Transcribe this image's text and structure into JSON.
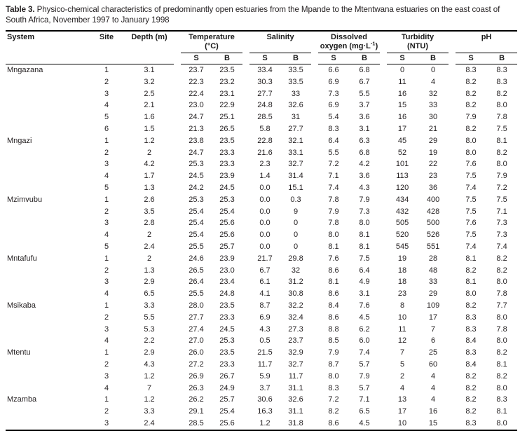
{
  "title": {
    "label": "Table 3.",
    "line1_rest": " Physico-chemical characteristics of predominantly open estuaries from the Mpande to the Mtentwana estuaries on the east coast of",
    "line2": "South Africa, November 1997 to January 1998"
  },
  "table": {
    "columns": {
      "system": "System",
      "site": "Site",
      "depth": "Depth (m)",
      "groups": [
        {
          "line1": "Temperature",
          "line2": "(°C)",
          "sub": [
            "S",
            "B"
          ]
        },
        {
          "line1": "Salinity",
          "line2": "",
          "sub": [
            "S",
            "B"
          ]
        },
        {
          "line1": "Dissolved",
          "line2_pre": "oxygen (mg·L",
          "line2_sup": "-1",
          "line2_post": ")",
          "sub": [
            "S",
            "B"
          ]
        },
        {
          "line1": "Turbidity",
          "line2": "(NTU)",
          "sub": [
            "S",
            "B"
          ]
        },
        {
          "line1": "pH",
          "line2": "",
          "sub": [
            "S",
            "B"
          ]
        }
      ]
    },
    "rows": [
      {
        "system": "Mngazana",
        "values": [
          "1",
          "3.1",
          "23.7",
          "23.5",
          "33.4",
          "33.5",
          "6.6",
          "6.8",
          "0",
          "0",
          "8.3",
          "8.3"
        ]
      },
      {
        "system": "",
        "values": [
          "2",
          "3.2",
          "22.3",
          "23.2",
          "30.3",
          "33.5",
          "6.9",
          "6.7",
          "11",
          "4",
          "8.2",
          "8.3"
        ]
      },
      {
        "system": "",
        "values": [
          "3",
          "2.5",
          "22.4",
          "23.1",
          "27.7",
          "33",
          "7.3",
          "5.5",
          "16",
          "32",
          "8.2",
          "8.2"
        ]
      },
      {
        "system": "",
        "values": [
          "4",
          "2.1",
          "23.0",
          "22.9",
          "24.8",
          "32.6",
          "6.9",
          "3.7",
          "15",
          "33",
          "8.2",
          "8.0"
        ]
      },
      {
        "system": "",
        "values": [
          "5",
          "1.6",
          "24.7",
          "25.1",
          "28.5",
          "31",
          "5.4",
          "3.6",
          "16",
          "30",
          "7.9",
          "7.8"
        ]
      },
      {
        "system": "",
        "values": [
          "6",
          "1.5",
          "21.3",
          "26.5",
          "5.8",
          "27.7",
          "8.3",
          "3.1",
          "17",
          "21",
          "8.2",
          "7.5"
        ]
      },
      {
        "system": "Mngazi",
        "values": [
          "1",
          "1.2",
          "23.8",
          "23.5",
          "22.8",
          "32.1",
          "6.4",
          "6.3",
          "45",
          "29",
          "8.0",
          "8.1"
        ]
      },
      {
        "system": "",
        "values": [
          "2",
          "2",
          "24.7",
          "23.3",
          "21.6",
          "33.1",
          "5.5",
          "6.8",
          "52",
          "19",
          "8.0",
          "8.2"
        ]
      },
      {
        "system": "",
        "values": [
          "3",
          "4.2",
          "25.3",
          "23.3",
          "2.3",
          "32.7",
          "7.2",
          "4.2",
          "101",
          "22",
          "7.6",
          "8.0"
        ]
      },
      {
        "system": "",
        "values": [
          "4",
          "1.7",
          "24.5",
          "23.9",
          "1.4",
          "31.4",
          "7.1",
          "3.6",
          "113",
          "23",
          "7.5",
          "7.9"
        ]
      },
      {
        "system": "",
        "values": [
          "5",
          "1.3",
          "24.2",
          "24.5",
          "0.0",
          "15.1",
          "7.4",
          "4.3",
          "120",
          "36",
          "7.4",
          "7.2"
        ]
      },
      {
        "system": "Mzimvubu",
        "values": [
          "1",
          "2.6",
          "25.3",
          "25.3",
          "0.0",
          "0.3",
          "7.8",
          "7.9",
          "434",
          "400",
          "7.5",
          "7.5"
        ]
      },
      {
        "system": "",
        "values": [
          "2",
          "3.5",
          "25.4",
          "25.4",
          "0.0",
          "9",
          "7.9",
          "7.3",
          "432",
          "428",
          "7.5",
          "7.1"
        ]
      },
      {
        "system": "",
        "values": [
          "3",
          "2.8",
          "25.4",
          "25.6",
          "0.0",
          "0",
          "7.8",
          "8.0",
          "505",
          "500",
          "7.6",
          "7.3"
        ]
      },
      {
        "system": "",
        "values": [
          "4",
          "2",
          "25.4",
          "25.6",
          "0.0",
          "0",
          "8.0",
          "8.1",
          "520",
          "526",
          "7.5",
          "7.3"
        ]
      },
      {
        "system": "",
        "values": [
          "5",
          "2.4",
          "25.5",
          "25.7",
          "0.0",
          "0",
          "8.1",
          "8.1",
          "545",
          "551",
          "7.4",
          "7.4"
        ]
      },
      {
        "system": "Mntafufu",
        "values": [
          "1",
          "2",
          "24.6",
          "23.9",
          "21.7",
          "29.8",
          "7.6",
          "7.5",
          "19",
          "28",
          "8.1",
          "8.2"
        ]
      },
      {
        "system": "",
        "values": [
          "2",
          "1.3",
          "26.5",
          "23.0",
          "6.7",
          "32",
          "8.6",
          "6.4",
          "18",
          "48",
          "8.2",
          "8.2"
        ]
      },
      {
        "system": "",
        "values": [
          "3",
          "2.9",
          "26.4",
          "23.4",
          "6.1",
          "31.2",
          "8.1",
          "4.9",
          "18",
          "33",
          "8.1",
          "8.0"
        ]
      },
      {
        "system": "",
        "values": [
          "4",
          "6.5",
          "25.5",
          "24.8",
          "4.1",
          "30.8",
          "8.6",
          "3.1",
          "23",
          "29",
          "8.0",
          "7.8"
        ]
      },
      {
        "system": "Msikaba",
        "values": [
          "1",
          "3.3",
          "28.0",
          "23.5",
          "8.7",
          "32.2",
          "8.4",
          "7.6",
          "8",
          "109",
          "8.2",
          "7.7"
        ]
      },
      {
        "system": "",
        "values": [
          "2",
          "5.5",
          "27.7",
          "23.3",
          "6.9",
          "32.4",
          "8.6",
          "4.5",
          "10",
          "17",
          "8.3",
          "8.0"
        ]
      },
      {
        "system": "",
        "values": [
          "3",
          "5.3",
          "27.4",
          "24.5",
          "4.3",
          "27.3",
          "8.8",
          "6.2",
          "11",
          "7",
          "8.3",
          "7.8"
        ]
      },
      {
        "system": "",
        "values": [
          "4",
          "2.2",
          "27.0",
          "25.3",
          "0.5",
          "23.7",
          "8.5",
          "6.0",
          "12",
          "6",
          "8.4",
          "8.0"
        ]
      },
      {
        "system": "Mtentu",
        "values": [
          "1",
          "2.9",
          "26.0",
          "23.5",
          "21.5",
          "32.9",
          "7.9",
          "7.4",
          "7",
          "25",
          "8.3",
          "8.2"
        ]
      },
      {
        "system": "",
        "values": [
          "2",
          "4.3",
          "27.2",
          "23.3",
          "11.7",
          "32.7",
          "8.7",
          "5.7",
          "5",
          "60",
          "8.4",
          "8.1"
        ]
      },
      {
        "system": "",
        "values": [
          "3",
          "1.2",
          "26.9",
          "26.7",
          "5.9",
          "11.7",
          "8.0",
          "7.9",
          "2",
          "4",
          "8.2",
          "8.2"
        ]
      },
      {
        "system": "",
        "values": [
          "4",
          "7",
          "26.3",
          "24.9",
          "3.7",
          "31.1",
          "8.3",
          "5.7",
          "4",
          "4",
          "8.2",
          "8.0"
        ]
      },
      {
        "system": "Mzamba",
        "values": [
          "1",
          "1.2",
          "26.2",
          "25.7",
          "30.6",
          "32.6",
          "7.2",
          "7.1",
          "13",
          "4",
          "8.2",
          "8.3"
        ]
      },
      {
        "system": "",
        "values": [
          "2",
          "3.3",
          "29.1",
          "25.4",
          "16.3",
          "31.1",
          "8.2",
          "6.5",
          "17",
          "16",
          "8.2",
          "8.1"
        ]
      },
      {
        "system": "",
        "values": [
          "3",
          "2.4",
          "28.5",
          "25.6",
          "1.2",
          "31.8",
          "8.6",
          "4.5",
          "10",
          "15",
          "8.3",
          "8.0"
        ]
      }
    ]
  }
}
